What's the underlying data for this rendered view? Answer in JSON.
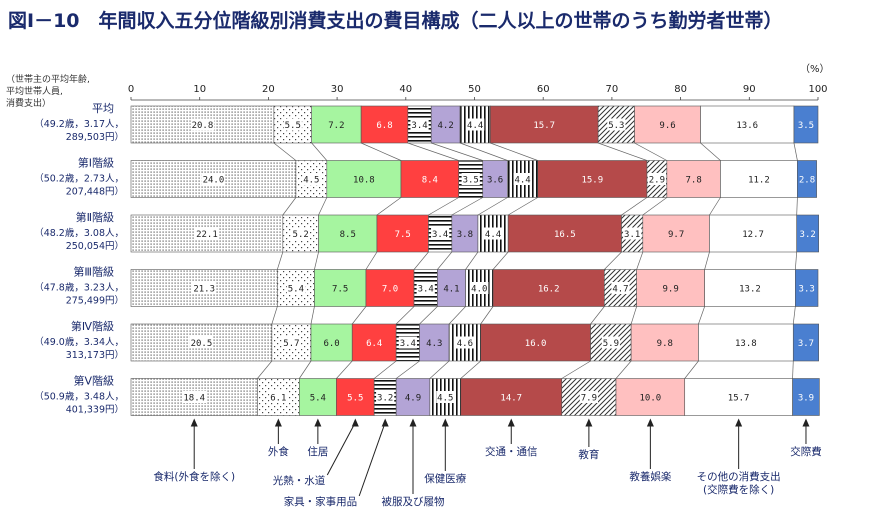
{
  "chart_data": {
    "type": "bar",
    "orientation": "horizontal",
    "stacked": true,
    "title": "図Ⅰ－10　年間収入五分位階級別消費支出の費目構成（二人以上の世帯のうち勤労者世帯）",
    "row_label_note": "（世帯主の平均年齢,\n平均世帯人員,\n消費支出）",
    "unit": "（%）",
    "xlim": [
      0,
      100
    ],
    "xticks": [
      0,
      10,
      20,
      30,
      40,
      50,
      60,
      70,
      80,
      90,
      100
    ],
    "categories": [
      {
        "name": "平均",
        "detail": [
          "（49.2歳，3.17人，",
          "289,503円）"
        ]
      },
      {
        "name": "第Ⅰ階級",
        "detail": [
          "（50.2歳，2.73人，",
          "207,448円）"
        ]
      },
      {
        "name": "第Ⅱ階級",
        "detail": [
          "（48.2歳，3.08人，",
          "250,054円）"
        ]
      },
      {
        "name": "第Ⅲ階級",
        "detail": [
          "（47.8歳，3.23人，",
          "275,499円）"
        ]
      },
      {
        "name": "第Ⅳ階級",
        "detail": [
          "（49.0歳，3.34人，",
          "313,173円）"
        ]
      },
      {
        "name": "第Ⅴ階級",
        "detail": [
          "（50.9歳，3.48人，",
          "401,339円）"
        ]
      }
    ],
    "series": [
      {
        "name": "食料(外食を除く)",
        "color": "#ffffff",
        "pattern": "dense-dots",
        "values": [
          20.8,
          24.0,
          22.1,
          21.3,
          20.5,
          18.4
        ]
      },
      {
        "name": "外食",
        "color": "#ffffff",
        "pattern": "sparse-dots",
        "values": [
          5.5,
          4.5,
          5.2,
          5.4,
          5.7,
          6.1
        ]
      },
      {
        "name": "住居",
        "color": "#a6f5a0",
        "pattern": "solid",
        "values": [
          7.2,
          10.8,
          8.5,
          7.5,
          6.0,
          5.4
        ]
      },
      {
        "name": "光熱・水道",
        "color": "#ff4040",
        "pattern": "solid",
        "values": [
          6.8,
          8.4,
          7.5,
          7.0,
          6.4,
          5.5
        ]
      },
      {
        "name": "家具・家事用品",
        "color": "#ffffff",
        "pattern": "hstripes",
        "values": [
          3.4,
          3.5,
          3.4,
          3.4,
          3.4,
          3.2
        ]
      },
      {
        "name": "被服及び履物",
        "color": "#b3a4d6",
        "pattern": "solid",
        "values": [
          4.2,
          3.6,
          3.8,
          4.1,
          4.3,
          4.9
        ]
      },
      {
        "name": "保健医療",
        "color": "#ffffff",
        "pattern": "vstripes",
        "values": [
          4.4,
          4.4,
          4.4,
          4.0,
          4.6,
          4.5
        ]
      },
      {
        "name": "交通・通信",
        "color": "#b54a4a",
        "pattern": "solid",
        "values": [
          15.7,
          15.9,
          16.5,
          16.2,
          16.0,
          14.7
        ]
      },
      {
        "name": "教育",
        "color": "#ffffff",
        "pattern": "diagonal",
        "values": [
          5.3,
          2.9,
          3.1,
          4.7,
          5.9,
          7.9
        ]
      },
      {
        "name": "教養娯楽",
        "color": "#ffc0c0",
        "pattern": "solid",
        "values": [
          9.6,
          7.8,
          9.7,
          9.9,
          9.8,
          10.0
        ]
      },
      {
        "name": "その他の消費支出\n(交際費を除く)",
        "color": "#ffffff",
        "pattern": "solid",
        "values": [
          13.6,
          11.2,
          12.7,
          13.2,
          13.8,
          15.7
        ]
      },
      {
        "name": "交際費",
        "color": "#4a7fd0",
        "pattern": "solid",
        "values": [
          3.5,
          2.8,
          3.2,
          3.3,
          3.7,
          3.9
        ]
      }
    ]
  }
}
